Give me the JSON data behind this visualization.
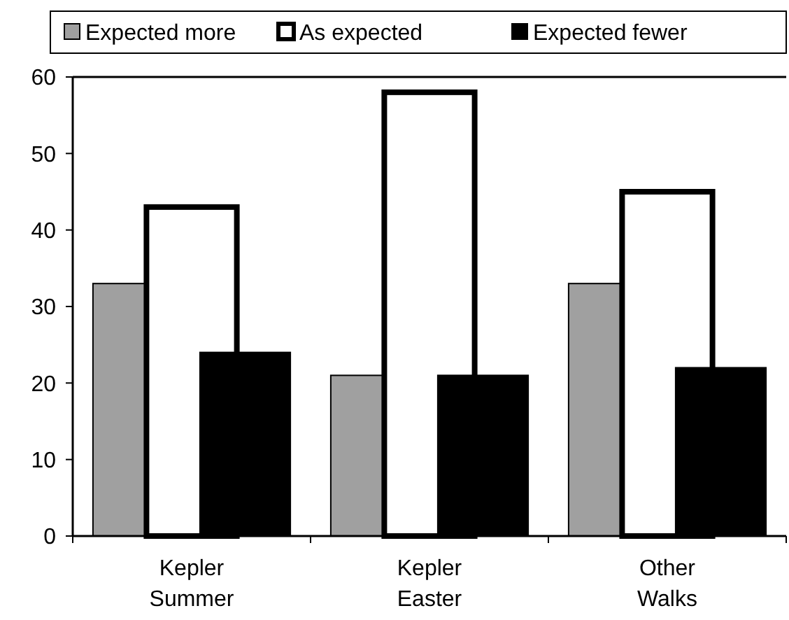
{
  "chart_data": {
    "type": "bar",
    "categories": [
      "Kepler Summer",
      "Kepler Easter",
      "Other Walks"
    ],
    "series": [
      {
        "name": "Expected more",
        "color": "#a0a0a0",
        "values": [
          33,
          21,
          33
        ]
      },
      {
        "name": "As expected",
        "color": "#ffffff",
        "values": [
          43,
          58,
          45
        ]
      },
      {
        "name": "Expected fewer",
        "color": "#000000",
        "values": [
          24,
          21,
          22
        ]
      }
    ],
    "ylim": [
      0,
      60
    ],
    "yticks": [
      0,
      10,
      20,
      30,
      40,
      50,
      60
    ],
    "grid": false,
    "legend": "top"
  }
}
